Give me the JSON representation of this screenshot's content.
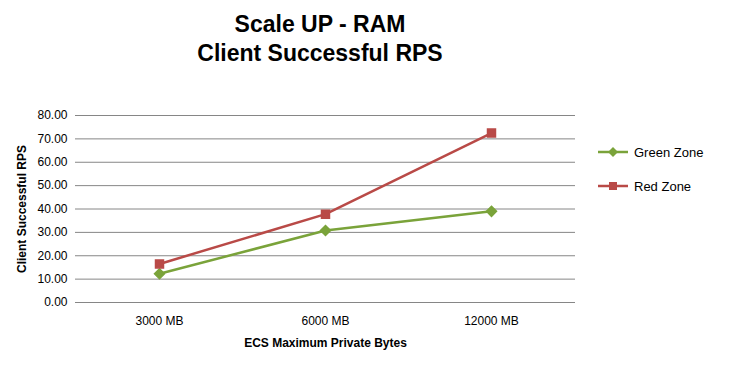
{
  "chart_data": {
    "type": "line",
    "title": "Scale UP - RAM",
    "subtitle": "Client Successful RPS",
    "x_label": "ECS Maximum Private Bytes",
    "y_label": "Client Successful RPS",
    "categories": [
      "3000 MB",
      "6000 MB",
      "12000 MB"
    ],
    "series": [
      {
        "name": "Green Zone",
        "color": "#7aa33a",
        "marker": "diamond",
        "values": [
          12.3,
          30.8,
          39.0
        ]
      },
      {
        "name": "Red Zone",
        "color": "#b94a47",
        "marker": "square",
        "values": [
          16.5,
          37.8,
          72.5
        ]
      }
    ],
    "ylim": [
      0,
      80
    ],
    "yticks": [
      {
        "value": 0,
        "label": "0.00"
      },
      {
        "value": 10,
        "label": "10.00"
      },
      {
        "value": 20,
        "label": "20.00"
      },
      {
        "value": 30,
        "label": "30.00"
      },
      {
        "value": 40,
        "label": "40.00"
      },
      {
        "value": 50,
        "label": "50.00"
      },
      {
        "value": 60,
        "label": "60.00"
      },
      {
        "value": 70,
        "label": "70.00"
      },
      {
        "value": 80,
        "label": "80.00"
      }
    ],
    "grid": true,
    "legend": "right"
  }
}
